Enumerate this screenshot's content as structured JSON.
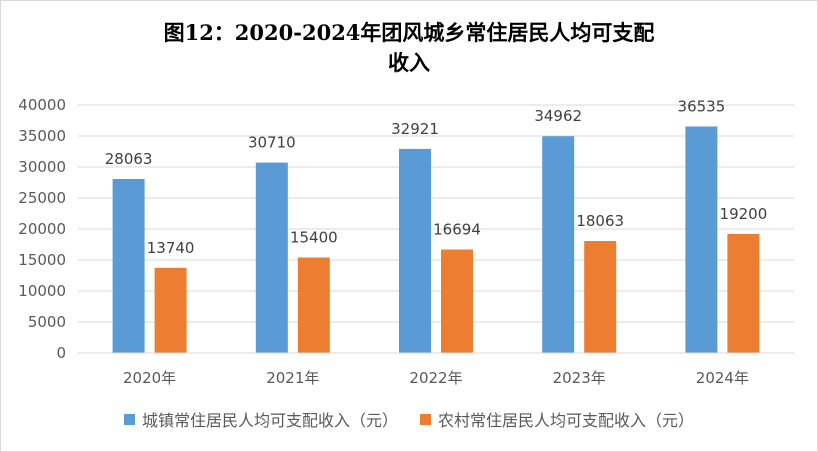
{
  "chart_data": {
    "type": "bar",
    "title_line1": "图12：2020-2024年团风城乡常住居民人均可支配",
    "title_line2": "收入",
    "categories": [
      "2020年",
      "2021年",
      "2022年",
      "2023年",
      "2024年"
    ],
    "series": [
      {
        "name": "城镇常住居民人均可支配收入（元）",
        "values": [
          28063,
          30710,
          32921,
          34962,
          36535
        ],
        "color": "#5B9BD5"
      },
      {
        "name": "农村常住居民人均可支配收入（元）",
        "values": [
          13740,
          15400,
          16694,
          18063,
          19200
        ],
        "color": "#ED7D31"
      }
    ],
    "ylim": [
      0,
      40000
    ],
    "yticks": [
      0,
      5000,
      10000,
      15000,
      20000,
      25000,
      30000,
      35000,
      40000
    ],
    "grid": true,
    "legend_position": "bottom"
  }
}
